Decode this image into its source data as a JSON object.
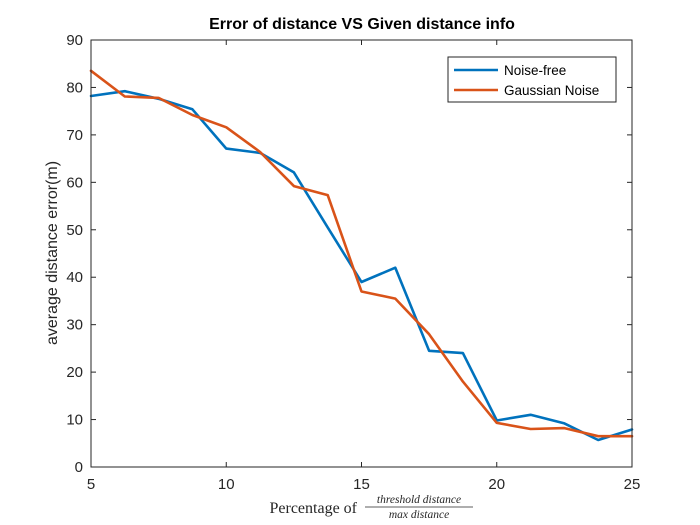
{
  "chart_data": {
    "type": "line",
    "title": "Error of distance VS Given distance info",
    "xlabel": {
      "prefix": "Percentage of",
      "numerator": "threshold distance",
      "denominator": "max distance"
    },
    "ylabel": "average distance error(m)",
    "xlim": [
      5,
      25
    ],
    "ylim": [
      0,
      90
    ],
    "xticks": [
      5,
      10,
      15,
      20,
      25
    ],
    "yticks": [
      0,
      10,
      20,
      30,
      40,
      50,
      60,
      70,
      80,
      90
    ],
    "grid": false,
    "legend_position": "top-right",
    "series": [
      {
        "name": "Noise-free",
        "color": "#0072BD",
        "x": [
          5,
          6.25,
          7.5,
          8.75,
          10,
          11.25,
          12.5,
          13.75,
          15,
          16.25,
          17.5,
          18.75,
          20,
          21.25,
          22.5,
          23.75,
          25
        ],
        "values": [
          78.2,
          79.2,
          77.6,
          75.4,
          67.1,
          66.2,
          62.1,
          50.5,
          39,
          42,
          24.5,
          24,
          9.8,
          11,
          9.2,
          5.7,
          7.9
        ]
      },
      {
        "name": "Gaussian Noise",
        "color": "#D95319",
        "x": [
          5,
          6.25,
          7.5,
          8.75,
          10,
          11.25,
          12.5,
          13.75,
          15,
          16.25,
          17.5,
          18.75,
          20,
          21.25,
          22.5,
          23.75,
          25
        ],
        "values": [
          83.5,
          78.1,
          77.8,
          74.2,
          71.6,
          66.4,
          59.2,
          57.3,
          37,
          35.5,
          28,
          18,
          9.3,
          8,
          8.2,
          6.5,
          6.5
        ]
      }
    ]
  }
}
